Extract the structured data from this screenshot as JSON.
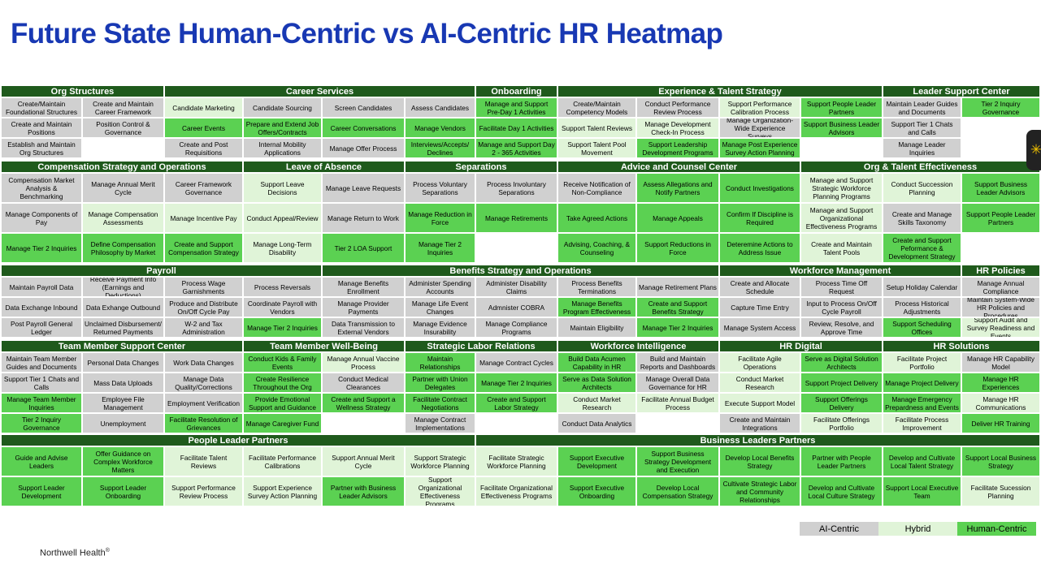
{
  "title": "Future State Human-Centric vs AI-Centric HR Heatmap",
  "footer": {
    "brand": "Northwell Health",
    "mark": "®"
  },
  "legend": [
    {
      "label": "AI-Centric",
      "type": "ai"
    },
    {
      "label": "Hybrid",
      "type": "hy"
    },
    {
      "label": "Human-Centric",
      "type": "hc"
    }
  ],
  "colors": {
    "ai": "#d0d0d0",
    "hybrid": "#e0f4d8",
    "human": "#5bd152",
    "header": "#1f5a1c",
    "title": "#1838b3"
  },
  "headers": [
    {
      "text": "Org Structures",
      "band": 0,
      "c0": 0,
      "c1": 2
    },
    {
      "text": "Career Services",
      "band": 0,
      "c0": 2,
      "c1": 6
    },
    {
      "text": "Onboarding",
      "band": 0,
      "c0": 6,
      "c1": 7
    },
    {
      "text": "Experience & Talent Strategy",
      "band": 0,
      "c0": 7,
      "c1": 11
    },
    {
      "text": "Leader Support Center",
      "band": 0,
      "c0": 11,
      "c1": 13
    },
    {
      "text": "Compensation Strategy and Operations",
      "band": 1,
      "c0": 0,
      "c1": 3
    },
    {
      "text": "Leave of Absence",
      "band": 1,
      "c0": 3,
      "c1": 5
    },
    {
      "text": "Separations",
      "band": 1,
      "c0": 5,
      "c1": 7
    },
    {
      "text": "Advice and Counsel Center",
      "band": 1,
      "c0": 7,
      "c1": 10
    },
    {
      "text": "Org & Talent Effectiveness",
      "band": 1,
      "c0": 10,
      "c1": 13
    },
    {
      "text": "Payroll",
      "band": 2,
      "c0": 0,
      "c1": 4
    },
    {
      "text": "Benefits Strategy and Operations",
      "band": 2,
      "c0": 4,
      "c1": 9
    },
    {
      "text": "Workforce Management",
      "band": 2,
      "c0": 9,
      "c1": 12
    },
    {
      "text": "HR Policies",
      "band": 2,
      "c0": 12,
      "c1": 13
    },
    {
      "text": "Team Member Support Center",
      "band": 3,
      "c0": 0,
      "c1": 3
    },
    {
      "text": "Team Member Well-Being",
      "band": 3,
      "c0": 3,
      "c1": 5
    },
    {
      "text": "Strategic Labor Relations",
      "band": 3,
      "c0": 5,
      "c1": 7
    },
    {
      "text": "Workforce Intelligence",
      "band": 3,
      "c0": 7,
      "c1": 9
    },
    {
      "text": "HR Digital",
      "band": 3,
      "c0": 9,
      "c1": 11
    },
    {
      "text": "HR Solutions",
      "band": 3,
      "c0": 11,
      "c1": 13
    },
    {
      "text": "People Leader Partners",
      "band": 4,
      "c0": 0,
      "c1": 6
    },
    {
      "text": "Business Leaders Partners",
      "band": 4,
      "c0": 6,
      "c1": 13
    }
  ],
  "rows": [
    [
      {
        "t": "Create/Maintain Foundational Structures",
        "k": "ai"
      },
      {
        "t": "Create and Maintain Career Framework",
        "k": "ai"
      },
      {
        "t": "Candidate Marketing",
        "k": "hy"
      },
      {
        "t": "Candidate Sourcing",
        "k": "ai"
      },
      {
        "t": "Screen Candidates",
        "k": "ai"
      },
      {
        "t": "Assess Candidates",
        "k": "ai"
      },
      {
        "t": "Manage and Support Pre-Day 1 Activities",
        "k": "hc"
      },
      {
        "t": "Create/Maintain Competency Models",
        "k": "ai"
      },
      {
        "t": "Conduct Performance Review Process",
        "k": "ai"
      },
      {
        "t": "Support Performance Calibration Process",
        "k": "hy"
      },
      {
        "t": "Support People Leader Partners",
        "k": "hc"
      },
      {
        "t": "Maintain Leader Guides and Documents",
        "k": "ai"
      },
      {
        "t": "Tier 2 Inquiry Governance",
        "k": "hc"
      }
    ],
    [
      {
        "t": "Create and Maintain Positions",
        "k": "ai"
      },
      {
        "t": "Position Control & Governance",
        "k": "ai"
      },
      {
        "t": "Career Events",
        "k": "hc"
      },
      {
        "t": "Prepare and Extend Job Offers/Contracts",
        "k": "hc"
      },
      {
        "t": "Career Conversations",
        "k": "hc"
      },
      {
        "t": "Manage Vendors",
        "k": "hc"
      },
      {
        "t": "Facilitate Day 1 Activities",
        "k": "hc"
      },
      {
        "t": "Support Talent Reviews",
        "k": "hy"
      },
      {
        "t": "Manage Development Check-In Process",
        "k": "hy"
      },
      {
        "t": "Manage Organization-Wide Experience Surveys",
        "k": "ai"
      },
      {
        "t": "Support Business Leader Advisors",
        "k": "hc"
      },
      {
        "t": "Support Tier 1 Chats and Calls",
        "k": "ai"
      },
      {
        "t": "",
        "k": "em"
      }
    ],
    [
      {
        "t": "Establish and Maintain Org Structures",
        "k": "ai"
      },
      {
        "t": "",
        "k": "em"
      },
      {
        "t": "Create and Post Requisitions",
        "k": "ai"
      },
      {
        "t": "Internal Mobility Applications",
        "k": "ai"
      },
      {
        "t": "Manage Offer Process",
        "k": "ai"
      },
      {
        "t": "Interviews/Accepts/ Declines",
        "k": "hc"
      },
      {
        "t": "Manage and Support Day 2 - 365 Activities",
        "k": "hc"
      },
      {
        "t": "Support Talent Pool Movement",
        "k": "hy"
      },
      {
        "t": "Support Leadership Development Programs",
        "k": "hc"
      },
      {
        "t": "Manage Post Experience Survey Action Planning",
        "k": "hc"
      },
      {
        "t": "",
        "k": "em"
      },
      {
        "t": "Manage Leader Inquiries",
        "k": "ai"
      },
      {
        "t": "",
        "k": "em"
      }
    ],
    [
      {
        "t": "Compensation Market Analysis & Benchmarking",
        "k": "ai"
      },
      {
        "t": "Manage Annual Merit Cycle",
        "k": "ai"
      },
      {
        "t": "Career Framework Governance",
        "k": "ai"
      },
      {
        "t": "Support Leave Decisions",
        "k": "hy"
      },
      {
        "t": "Manage Leave Requests",
        "k": "ai"
      },
      {
        "t": "Process Voluntary Separations",
        "k": "ai"
      },
      {
        "t": "Process Involuntary Separations",
        "k": "ai"
      },
      {
        "t": "Receive Notification of Non-Compliance",
        "k": "ai"
      },
      {
        "t": "Assess Allegations and Notify Partners",
        "k": "hc"
      },
      {
        "t": "Conduct Investigations",
        "k": "hc"
      },
      {
        "t": "Manage and Support Strategic Workforce Planning Programs",
        "k": "hy"
      },
      {
        "t": "Conduct Succession Planning",
        "k": "hy"
      },
      {
        "t": "Support Business Leader Advisors",
        "k": "hc"
      }
    ],
    [
      {
        "t": "Manage Components of Pay",
        "k": "ai"
      },
      {
        "t": "Manage Compensation Assessments",
        "k": "hy"
      },
      {
        "t": "Manage Incentive Pay",
        "k": "hy"
      },
      {
        "t": "Conduct Appeal/Review",
        "k": "hy"
      },
      {
        "t": "Manage Return to Work",
        "k": "ai"
      },
      {
        "t": "Manage Reduction in Force",
        "k": "hc"
      },
      {
        "t": "Manage Retirements",
        "k": "hc"
      },
      {
        "t": "Take Agreed Actions",
        "k": "hc"
      },
      {
        "t": "Manage Appeals",
        "k": "hc"
      },
      {
        "t": "Confirm If Discipline is Required",
        "k": "hc"
      },
      {
        "t": "Manage and Support Organizational Effectiveness Programs",
        "k": "hy"
      },
      {
        "t": "Create and Manage Skills Taxonomy",
        "k": "ai"
      },
      {
        "t": "Support People Leader Partners",
        "k": "hc"
      }
    ],
    [
      {
        "t": "Manage Tier 2 Inquiries",
        "k": "hc"
      },
      {
        "t": "Define Compensation Philosophy by Market",
        "k": "hc"
      },
      {
        "t": "Create and Support Compensation Strategy",
        "k": "hc"
      },
      {
        "t": "Manage Long-Term Disability",
        "k": "hy"
      },
      {
        "t": "Tier 2 LOA Support",
        "k": "hc"
      },
      {
        "t": "Manage Tier 2 Inquiries",
        "k": "hc"
      },
      {
        "t": "",
        "k": "em"
      },
      {
        "t": "Advising, Coaching, & Counseling",
        "k": "hc"
      },
      {
        "t": "Support Reductions in Force",
        "k": "hc"
      },
      {
        "t": "Deteremine Actions to Address Issue",
        "k": "hc"
      },
      {
        "t": "Create and Maintain Talent Pools",
        "k": "hy"
      },
      {
        "t": "Create and Support Peformance & Development Strategy",
        "k": "hc"
      },
      {
        "t": "",
        "k": "em"
      }
    ],
    [
      {
        "t": "Maintain Payroll Data",
        "k": "ai"
      },
      {
        "t": "Receive Payment Info (Earnings and Deductions)",
        "k": "ai"
      },
      {
        "t": "Process Wage Garnishments",
        "k": "ai"
      },
      {
        "t": "Process Reversals",
        "k": "ai"
      },
      {
        "t": "Manage Benefits Enrollment",
        "k": "ai"
      },
      {
        "t": "Administer Spending Accounts",
        "k": "ai"
      },
      {
        "t": "Administer Disability Claims",
        "k": "ai"
      },
      {
        "t": "Process Benefits Terminations",
        "k": "ai"
      },
      {
        "t": "Manage Retirement Plans",
        "k": "ai"
      },
      {
        "t": "Create and Allocate Schedule",
        "k": "ai"
      },
      {
        "t": "Process Time Off Request",
        "k": "ai"
      },
      {
        "t": "Setup Holiday Calendar",
        "k": "ai"
      },
      {
        "t": "Manage Annual Compliance",
        "k": "ai"
      }
    ],
    [
      {
        "t": "Data Exchange Inbound",
        "k": "ai"
      },
      {
        "t": "Data Exhange Outbound",
        "k": "ai"
      },
      {
        "t": "Produce and Distribute On/Off Cycle Pay",
        "k": "ai"
      },
      {
        "t": "Coordinate Payroll with Vendors",
        "k": "ai"
      },
      {
        "t": "Manage Provider Payments",
        "k": "ai"
      },
      {
        "t": "Manage Life Event Changes",
        "k": "ai"
      },
      {
        "t": "Admnister COBRA",
        "k": "ai"
      },
      {
        "t": "Manage Benefits Program Effectiveness",
        "k": "hc"
      },
      {
        "t": "Create and Support Benefits Strategy",
        "k": "hc"
      },
      {
        "t": "Capture Time Entry",
        "k": "ai"
      },
      {
        "t": "Input to Process On/Off Cycle Payroll",
        "k": "ai"
      },
      {
        "t": "Process Historical Adjustments",
        "k": "ai"
      },
      {
        "t": "Maintain System-Wide HR Policies and Procedures",
        "k": "ai"
      }
    ],
    [
      {
        "t": "Post Payroll General Ledger",
        "k": "ai"
      },
      {
        "t": "Unclaimed Disbursement/ Returned Payments",
        "k": "ai"
      },
      {
        "t": "W-2 and Tax Administration",
        "k": "ai"
      },
      {
        "t": "Manage Tier 2 Inquiries",
        "k": "hc"
      },
      {
        "t": "Data Transmission to External Vendors",
        "k": "ai"
      },
      {
        "t": "Manage Evidence Insurability",
        "k": "ai"
      },
      {
        "t": "Manage Compliance Programs",
        "k": "ai"
      },
      {
        "t": "Maintain Eligibility",
        "k": "ai"
      },
      {
        "t": "Manage Tier 2 Inquiries",
        "k": "hc"
      },
      {
        "t": "Manage System Access",
        "k": "ai"
      },
      {
        "t": "Review, Resolve, and Approve Time",
        "k": "ai"
      },
      {
        "t": "Support Scheduling Offices",
        "k": "hc"
      },
      {
        "t": "Support Audit and Survey Readiness and Events",
        "k": "hy"
      }
    ],
    [
      {
        "t": "Maintain Team Member Guides and Documents",
        "k": "ai"
      },
      {
        "t": "Personal Data Changes",
        "k": "ai"
      },
      {
        "t": "Work Data Changes",
        "k": "ai"
      },
      {
        "t": "Conduct Kids & Family Events",
        "k": "hc"
      },
      {
        "t": "Manage Annual Vaccine Process",
        "k": "hy"
      },
      {
        "t": "Maintain Relationships",
        "k": "hc"
      },
      {
        "t": "Manage Contract Cycles",
        "k": "ai"
      },
      {
        "t": "Build Data Acumen Capability in HR",
        "k": "hc"
      },
      {
        "t": "Build and Maintain Reports and Dashboards",
        "k": "ai"
      },
      {
        "t": "Facilitate Agile Operations",
        "k": "hy"
      },
      {
        "t": "Serve as Digital Solution Architects",
        "k": "hc"
      },
      {
        "t": "Facilitate Project Portfolio",
        "k": "hy"
      },
      {
        "t": "Manage HR Capability Model",
        "k": "ai"
      }
    ],
    [
      {
        "t": "Support Tier 1 Chats and Calls",
        "k": "ai"
      },
      {
        "t": "Mass Data Uploads",
        "k": "ai"
      },
      {
        "t": "Manage Data Quality/Corrections",
        "k": "ai"
      },
      {
        "t": "Create Resilience Throughout the Org",
        "k": "hc"
      },
      {
        "t": "Conduct Medical Clearances",
        "k": "ai"
      },
      {
        "t": "Partner with Union Delegates",
        "k": "hc"
      },
      {
        "t": "Manage Tier 2 Inquiries",
        "k": "hc"
      },
      {
        "t": "Serve as Data Solution Architects",
        "k": "hc"
      },
      {
        "t": "Manage Overall Data Governance for HR",
        "k": "ai"
      },
      {
        "t": "Conduct Market Research",
        "k": "hy"
      },
      {
        "t": "Support Project Delivery",
        "k": "hc"
      },
      {
        "t": "Manage Project Delivery",
        "k": "hc"
      },
      {
        "t": "Manage HR Experiences",
        "k": "hc"
      }
    ],
    [
      {
        "t": "Manage Team Member Inquiries",
        "k": "hc"
      },
      {
        "t": "Employee File Management",
        "k": "ai"
      },
      {
        "t": "Employment Verification",
        "k": "ai"
      },
      {
        "t": "Provide Emotional Support and Guidance",
        "k": "hc"
      },
      {
        "t": "Create and Support a Wellness Strategy",
        "k": "hc"
      },
      {
        "t": "Facilitate Contract Negotiations",
        "k": "hc"
      },
      {
        "t": "Create and Support Labor Strategy",
        "k": "hc"
      },
      {
        "t": "Conduct Market Research",
        "k": "hy"
      },
      {
        "t": "Facilitate Annual Budget Process",
        "k": "hy"
      },
      {
        "t": "Execute Support Model",
        "k": "hy"
      },
      {
        "t": "Support Offerings Delivery",
        "k": "hc"
      },
      {
        "t": "Manage Emergency Prepardness and Events",
        "k": "hc"
      },
      {
        "t": "Manage HR Communications",
        "k": "hy"
      }
    ],
    [
      {
        "t": "Tier 2 Inquiry Governance",
        "k": "hc"
      },
      {
        "t": "Unemployment",
        "k": "ai"
      },
      {
        "t": "Facilitate Resolution of Grievances",
        "k": "hc"
      },
      {
        "t": "Manage Caregiver Fund",
        "k": "hc"
      },
      {
        "t": "",
        "k": "em"
      },
      {
        "t": "Manage Contract Implementations",
        "k": "ai"
      },
      {
        "t": "",
        "k": "em"
      },
      {
        "t": "Conduct Data Analytics",
        "k": "ai"
      },
      {
        "t": "",
        "k": "em"
      },
      {
        "t": "Create and Maintain Integrations",
        "k": "ai"
      },
      {
        "t": "Facilitate Offerings Portfolio",
        "k": "hy"
      },
      {
        "t": "Facilitate Process Improvement",
        "k": "hy"
      },
      {
        "t": "Deliver HR Training",
        "k": "hc"
      }
    ],
    [
      {
        "t": "Guide and Advise Leaders",
        "k": "hc"
      },
      {
        "t": "Offer Guidance on Complex Workforce Matters",
        "k": "hc"
      },
      {
        "t": "Facilitate Talent Reviews",
        "k": "hy"
      },
      {
        "t": "Facilitate Performance Calibrations",
        "k": "hy"
      },
      {
        "t": "Support Annual Merit Cycle",
        "k": "hy"
      },
      {
        "t": "Support Strategic Workforce Planning",
        "k": "hy"
      },
      {
        "t": "Facilitate Strategic Workforce Planning",
        "k": "hy"
      },
      {
        "t": "Support Executive Development",
        "k": "hc"
      },
      {
        "t": "Support Business Strategy Development and Execution",
        "k": "hc"
      },
      {
        "t": "Develop Local Benefits Strategy",
        "k": "hc"
      },
      {
        "t": "Partner with People Leader Partners",
        "k": "hc"
      },
      {
        "t": "Develop and Cultivate Local Talent Strategy",
        "k": "hc"
      },
      {
        "t": "Support Local Business Strategy",
        "k": "hc"
      }
    ],
    [
      {
        "t": "Support Leader Development",
        "k": "hc"
      },
      {
        "t": "Support Leader Onboarding",
        "k": "hc"
      },
      {
        "t": "Support Performance Review Process",
        "k": "hy"
      },
      {
        "t": "Support Experience Survey Action Planning",
        "k": "hy"
      },
      {
        "t": "Partner with Business Leader Advisors",
        "k": "hc"
      },
      {
        "t": "Support Organizational Effectiveness Programs",
        "k": "hy"
      },
      {
        "t": "Facilitate Organizational Effectiveness Programs",
        "k": "hy"
      },
      {
        "t": "Support Executive Onboarding",
        "k": "hc"
      },
      {
        "t": "Develop Local Compensation Strategy",
        "k": "hc"
      },
      {
        "t": "Cultivate Strategic Labor and Community Relationships",
        "k": "hc"
      },
      {
        "t": "Develop and Cultivate Local Culture Strategy",
        "k": "hc"
      },
      {
        "t": "Support Local Executive Team",
        "k": "hc"
      },
      {
        "t": "Facilitate Sucession Planning",
        "k": "hy"
      }
    ]
  ]
}
